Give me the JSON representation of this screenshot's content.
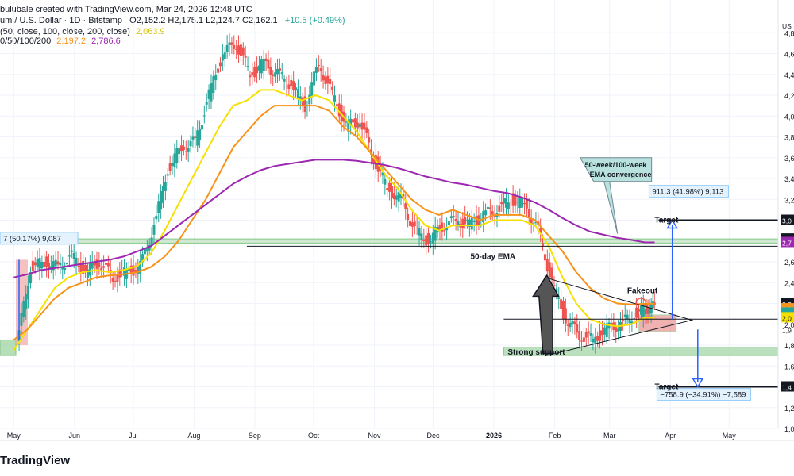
{
  "header": {
    "line1_prefix": "bulubale created with TradingView.com, Mar 24, 2026 12:48 UTC",
    "symbol": "um / U.S. Dollar · 1D · Bitstamp",
    "ohlc": "O2,152.2  H2,175.1  L2,124.7  C2,162.1",
    "change": "+10.5 (+0.49%)",
    "ema_label": "(50, close, 100, close, 200, close)",
    "ema_value": "2,063.9",
    "ma_label": "0/50/100/200",
    "ma_val1": "2,197.2",
    "ma_val2": "2,786.6"
  },
  "branding": {
    "logo_text": "TradingView"
  },
  "colors": {
    "up": "#26a69a",
    "down": "#ef5350",
    "ema50": "#f7931a",
    "ema_fast": "#f5e000",
    "ema200": "#9c27b0",
    "arrow": "#2962ff",
    "support": "#a5d6a7",
    "target_box": "#e57373"
  },
  "chart_data": {
    "type": "line",
    "x": [
      "2025-05-01",
      "2025-05-08",
      "2025-05-15",
      "2025-05-22",
      "2025-05-29",
      "2025-06-05",
      "2025-06-12",
      "2025-06-19",
      "2025-06-26",
      "2025-07-03",
      "2025-07-10",
      "2025-07-17",
      "2025-07-24",
      "2025-07-31",
      "2025-08-07",
      "2025-08-14",
      "2025-08-21",
      "2025-08-28",
      "2025-09-04",
      "2025-09-11",
      "2025-09-18",
      "2025-09-25",
      "2025-10-02",
      "2025-10-09",
      "2025-10-16",
      "2025-10-23",
      "2025-10-30",
      "2025-11-06",
      "2025-11-13",
      "2025-11-20",
      "2025-11-27",
      "2025-12-04",
      "2025-12-11",
      "2025-12-18",
      "2025-12-25",
      "2026-01-01",
      "2026-01-08",
      "2026-01-15",
      "2026-01-22",
      "2026-01-29",
      "2026-02-05",
      "2026-02-12",
      "2026-02-19",
      "2026-02-26",
      "2026-03-05",
      "2026-03-12",
      "2026-03-19",
      "2026-03-24"
    ],
    "series": [
      {
        "values": [
          1800,
          2550,
          2600,
          2550,
          2650,
          2500,
          2600,
          2450,
          2500,
          2550,
          2950,
          3500,
          3700,
          3750,
          4200,
          4600,
          4700,
          4400,
          4500,
          4400,
          4300,
          4100,
          4500,
          4200,
          3900,
          3950,
          3600,
          3300,
          3200,
          2900,
          2800,
          2950,
          3000,
          2950,
          3050,
          3100,
          3200,
          3150,
          2900,
          2400,
          2050,
          1900,
          1850,
          1950,
          2000,
          2100,
          2150,
          2162
        ]
      },
      {
        "values": [
          1750,
          1950,
          2150,
          2350,
          2450,
          2500,
          2520,
          2500,
          2520,
          2560,
          2680,
          2900,
          3150,
          3400,
          3650,
          3900,
          4100,
          4150,
          4250,
          4250,
          4200,
          4150,
          4200,
          4150,
          4000,
          3850,
          3650,
          3450,
          3300,
          3100,
          2950,
          2900,
          2950,
          2950,
          2950,
          3000,
          3000,
          3000,
          2950,
          2750,
          2450,
          2200,
          2050,
          2000,
          1980,
          2000,
          2064,
          2064
        ]
      },
      {
        "values": [
          1850,
          1950,
          2100,
          2250,
          2350,
          2400,
          2450,
          2470,
          2480,
          2500,
          2550,
          2650,
          2800,
          3000,
          3200,
          3450,
          3700,
          3850,
          4000,
          4100,
          4100,
          4100,
          4100,
          4050,
          3900,
          3800,
          3650,
          3500,
          3350,
          3200,
          3100,
          3050,
          3100,
          3050,
          3000,
          3050,
          3050,
          3050,
          3000,
          2850,
          2700,
          2500,
          2350,
          2250,
          2200,
          2190,
          2197,
          2197
        ]
      },
      {
        "values": [
          2450,
          2480,
          2520,
          2540,
          2560,
          2580,
          2600,
          2620,
          2650,
          2700,
          2750,
          2850,
          2950,
          3050,
          3150,
          3250,
          3350,
          3420,
          3480,
          3520,
          3540,
          3560,
          3580,
          3580,
          3580,
          3570,
          3550,
          3530,
          3500,
          3460,
          3420,
          3390,
          3360,
          3340,
          3310,
          3280,
          3260,
          3220,
          3170,
          3100,
          3020,
          2950,
          2890,
          2860,
          2830,
          2810,
          2787,
          2787
        ]
      }
    ],
    "y_ticks": [
      "4,8",
      "4,6",
      "4,4",
      "4,2",
      "4,0",
      "3,8",
      "3,6",
      "3,4",
      "3,2",
      "3,0",
      "2,8",
      "2,6",
      "2,4",
      "2,2",
      "2,0",
      "1,8",
      "1,6",
      "1,4",
      "1,2",
      "1,0"
    ],
    "x_ticks": [
      "May",
      "Jun",
      "Jul",
      "Aug",
      "Sep",
      "Oct",
      "Nov",
      "Dec",
      "2026",
      "Feb",
      "Mar",
      "Apr",
      "May"
    ],
    "ylim": [
      1000,
      5000
    ],
    "price_tags": [
      "US",
      "3,0",
      "2,7",
      "2,7",
      "2,2",
      "2,1",
      "2,1",
      "1,1",
      "2,0",
      "1,9",
      "1,4"
    ],
    "annotations": {
      "left_measure": "7 (50.17%) 9,087",
      "up_measure": "911.3 (41.98%) 9,113",
      "down_measure": "−758.9 (−34.91%) −7,589",
      "target_up": "Target",
      "target_down": "Target",
      "ema50_label": "50-day EMA",
      "convergence_label_1": "50-week/100-week",
      "convergence_label_2": "EMA convergence",
      "fakeout": "Fakeout",
      "support": "Strong support",
      "target_up_level": 3000,
      "target_down_level": 1400,
      "neckline_level": 2050,
      "ema50_line_level": 2750,
      "resistance_zone": [
        2780,
        2820
      ]
    }
  }
}
